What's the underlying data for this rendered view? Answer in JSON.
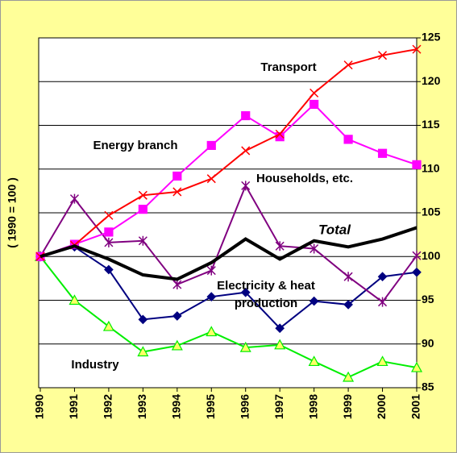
{
  "chart_data": {
    "type": "line",
    "y_axis_label": "( 1990 = 100 )",
    "categories": [
      "1990",
      "1991",
      "1992",
      "1993",
      "1994",
      "1995",
      "1996",
      "1997",
      "1998",
      "1999",
      "2000",
      "2001"
    ],
    "ylim": [
      85,
      125
    ],
    "yticks": [
      85,
      90,
      95,
      100,
      105,
      110,
      115,
      120,
      125
    ],
    "grid": true,
    "series": [
      {
        "name": "Industry",
        "color": "#00ee00",
        "marker": "triangle",
        "values": [
          100,
          95,
          92,
          89.1,
          89.8,
          91.4,
          89.6,
          89.9,
          88,
          86.2,
          88,
          87.3
        ]
      },
      {
        "name": "Electricity & heat production",
        "color": "#000080",
        "marker": "diamond",
        "values": [
          100,
          101.1,
          98.5,
          92.8,
          93.2,
          95.4,
          95.9,
          91.8,
          94.9,
          94.5,
          97.7,
          98.2
        ]
      },
      {
        "name": "Households, etc.",
        "color": "#800080",
        "marker": "asterisk",
        "values": [
          100,
          106.6,
          101.6,
          101.8,
          96.8,
          98.4,
          108.1,
          101.2,
          100.9,
          97.7,
          94.8,
          100.1
        ]
      },
      {
        "name": "Energy branch",
        "color": "#ff00ff",
        "marker": "square",
        "values": [
          100,
          101.4,
          102.8,
          105.4,
          109.2,
          112.7,
          116.1,
          113.7,
          117.4,
          113.4,
          111.8,
          110.5
        ]
      },
      {
        "name": "Transport",
        "color": "#ff0000",
        "marker": "x",
        "values": [
          100,
          101.3,
          104.7,
          107,
          107.4,
          108.9,
          112.1,
          114,
          118.7,
          121.9,
          123,
          123.7
        ]
      },
      {
        "name": "Total",
        "color": "#000000",
        "marker": "none",
        "width": 4,
        "values": [
          100,
          101.2,
          99.7,
          97.9,
          97.4,
          99.3,
          102,
          99.7,
          101.8,
          101.1,
          102,
          103.3
        ]
      }
    ]
  }
}
